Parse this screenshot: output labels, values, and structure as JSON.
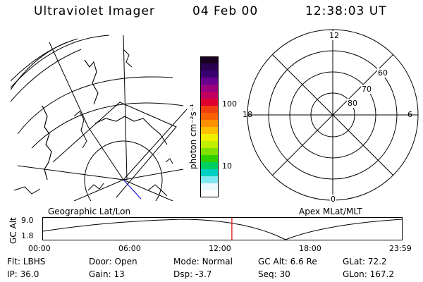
{
  "header": {
    "title": "Ultraviolet Imager",
    "date": "04 Feb 00",
    "time": "12:38:03 UT"
  },
  "colorbar": {
    "unit": "photon cm⁻²s⁻¹",
    "tick_labels": [
      "100",
      "10"
    ],
    "colors": [
      "#1a0020",
      "#2a0050",
      "#3a0070",
      "#6a0090",
      "#9a0080",
      "#c00060",
      "#e00030",
      "#f04010",
      "#f86000",
      "#ff9000",
      "#ffc000",
      "#f0f000",
      "#c0f000",
      "#80e000",
      "#30d000",
      "#00d060",
      "#00d0c0",
      "#80e8f0",
      "#e8f8fc",
      "#ffffff"
    ]
  },
  "left_map": {
    "caption": "Geographic Lat/Lon"
  },
  "right_map": {
    "caption": "Apex  MLat/MLT",
    "mlt_labels": [
      "12",
      "18",
      "6",
      "0"
    ],
    "mlat_labels": [
      "60",
      "70",
      "80"
    ]
  },
  "timeline": {
    "axis_label": "GC Alt",
    "y_ticks": [
      "9.0",
      "1.8"
    ],
    "x_ticks": [
      "00:00",
      "06:00",
      "12:00",
      "18:00",
      "23:59"
    ],
    "current_marker_hours": 12.63
  },
  "params": [
    {
      "label": "Flt:",
      "value": "LBHS"
    },
    {
      "label": "Door:",
      "value": "Open"
    },
    {
      "label": "Mode:",
      "value": "Normal"
    },
    {
      "label": "GC Alt:",
      "value": "6.6 Re"
    },
    {
      "label": "GLat:",
      "value": "72.2"
    },
    {
      "label": "IP:",
      "value": "36.0"
    },
    {
      "label": "Gain:",
      "value": "13"
    },
    {
      "label": "Dsp:",
      "value": "-3.7"
    },
    {
      "label": "Seq:",
      "value": "30"
    },
    {
      "label": "GLon:",
      "value": "167.2"
    }
  ]
}
